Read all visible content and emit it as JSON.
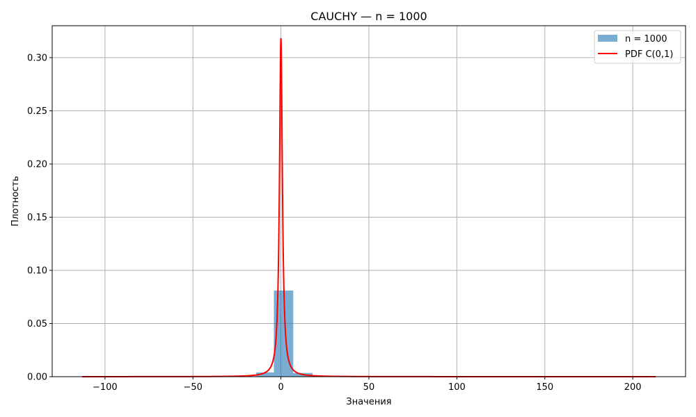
{
  "chart_data": {
    "type": "bar",
    "title": "CAUCHY — n = 1000",
    "xlabel": "Значения",
    "ylabel": "Плотность",
    "xlim": [
      -130,
      230
    ],
    "ylim": [
      0,
      0.33
    ],
    "xticks": [
      -100,
      -50,
      0,
      50,
      100,
      150,
      200
    ],
    "xtick_labels": [
      "−100",
      "−50",
      "0",
      "50",
      "100",
      "150",
      "200"
    ],
    "yticks": [
      0.0,
      0.05,
      0.1,
      0.15,
      0.2,
      0.25,
      0.3
    ],
    "ytick_labels": [
      "0.00",
      "0.05",
      "0.10",
      "0.15",
      "0.20",
      "0.25",
      "0.30"
    ],
    "grid": true,
    "legend_position": "top-right",
    "histogram": {
      "name": "n = 1000",
      "color": "#1f77b4",
      "alpha": 0.6,
      "bins": [
        {
          "x0": -113,
          "x1": -102,
          "density": 0.0001
        },
        {
          "x0": -102,
          "x1": -91,
          "density": 0.0
        },
        {
          "x0": -91,
          "x1": -80,
          "density": 0.0
        },
        {
          "x0": -80,
          "x1": -69,
          "density": 0.0
        },
        {
          "x0": -69,
          "x1": -58,
          "density": 0.0001
        },
        {
          "x0": -58,
          "x1": -47,
          "density": 0.0
        },
        {
          "x0": -47,
          "x1": -36,
          "density": 0.0001
        },
        {
          "x0": -36,
          "x1": -25,
          "density": 0.0002
        },
        {
          "x0": -25,
          "x1": -14,
          "density": 0.0005
        },
        {
          "x0": -14,
          "x1": -4,
          "density": 0.004
        },
        {
          "x0": -4,
          "x1": 7,
          "density": 0.081
        },
        {
          "x0": 7,
          "x1": 18,
          "density": 0.0035
        },
        {
          "x0": 18,
          "x1": 29,
          "density": 0.0007
        },
        {
          "x0": 29,
          "x1": 40,
          "density": 0.0002
        },
        {
          "x0": 40,
          "x1": 51,
          "density": 0.0001
        },
        {
          "x0": 51,
          "x1": 62,
          "density": 0.0001
        },
        {
          "x0": 62,
          "x1": 73,
          "density": 0.0
        },
        {
          "x0": 73,
          "x1": 84,
          "density": 0.0
        },
        {
          "x0": 84,
          "x1": 95,
          "density": 0.0
        },
        {
          "x0": 95,
          "x1": 106,
          "density": 0.0
        },
        {
          "x0": 106,
          "x1": 117,
          "density": 0.0
        },
        {
          "x0": 117,
          "x1": 128,
          "density": 0.0
        },
        {
          "x0": 128,
          "x1": 139,
          "density": 0.0
        },
        {
          "x0": 139,
          "x1": 150,
          "density": 0.0
        },
        {
          "x0": 150,
          "x1": 161,
          "density": 0.0
        },
        {
          "x0": 161,
          "x1": 172,
          "density": 0.0
        },
        {
          "x0": 172,
          "x1": 183,
          "density": 0.0
        },
        {
          "x0": 183,
          "x1": 194,
          "density": 0.0
        },
        {
          "x0": 194,
          "x1": 205,
          "density": 0.0
        },
        {
          "x0": 205,
          "x1": 213,
          "density": 0.0001
        }
      ]
    },
    "pdf_curve": {
      "name": "PDF C(0,1)",
      "color": "#ff0000",
      "distribution": "cauchy",
      "location": 0,
      "scale": 1,
      "x_range": [
        -113,
        213
      ]
    }
  }
}
